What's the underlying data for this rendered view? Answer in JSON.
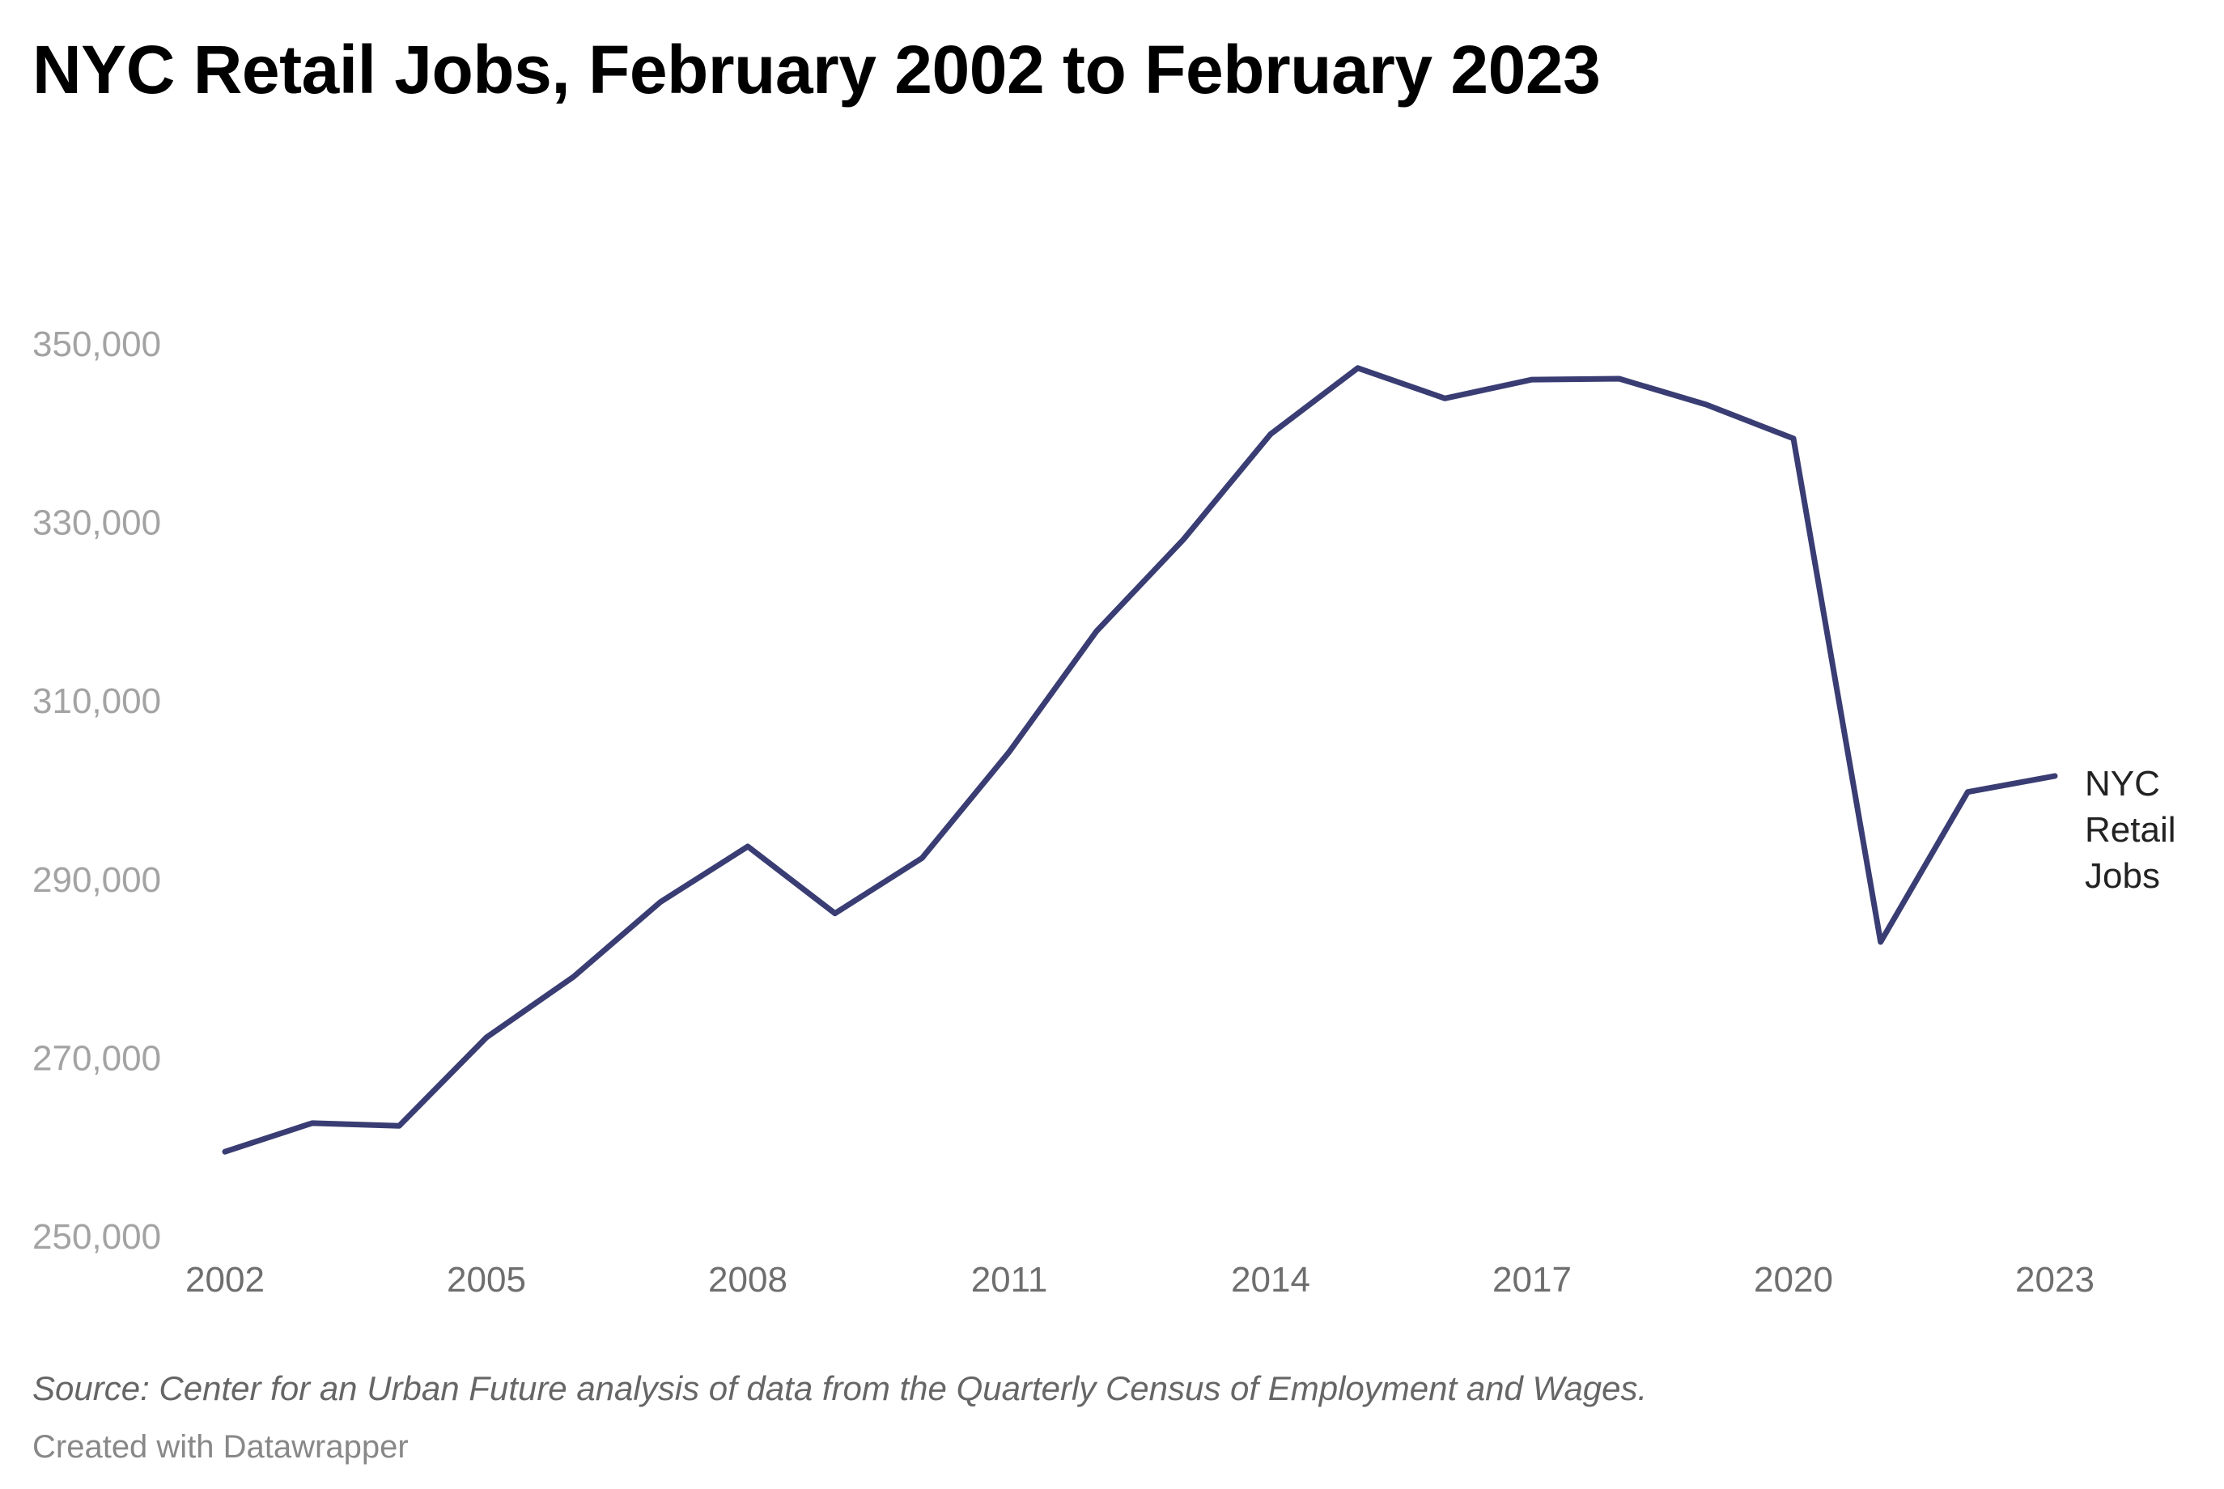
{
  "header": {
    "title": "NYC Retail Jobs, February 2002 to February 2023"
  },
  "footer": {
    "source": "Source: Center for an Urban Future analysis of data from the Quarterly Census of Employment and Wages.",
    "credit": "Created with Datawrapper"
  },
  "colors": {
    "line": "#393d73",
    "y_tick": "#a3a3a3",
    "x_tick": "#6e6e6e",
    "label": "#222222"
  },
  "chart_data": {
    "type": "line",
    "title": "NYC Retail Jobs, February 2002 to February 2023",
    "xlabel": "",
    "ylabel": "",
    "x": [
      2002,
      2003,
      2004,
      2005,
      2006,
      2007,
      2008,
      2009,
      2010,
      2011,
      2012,
      2013,
      2014,
      2015,
      2016,
      2017,
      2018,
      2019,
      2020,
      2021,
      2022,
      2023
    ],
    "series": [
      {
        "name": "NYC Retail Jobs",
        "values": [
          259500,
          262700,
          262400,
          272300,
          279100,
          287500,
          293700,
          286200,
          292400,
          304300,
          317800,
          328100,
          339900,
          347300,
          343900,
          346000,
          346100,
          343200,
          339400,
          283000,
          299800,
          301600
        ]
      }
    ],
    "x_ticks": [
      "2002",
      "2005",
      "2008",
      "2011",
      "2014",
      "2017",
      "2020",
      "2023"
    ],
    "y_ticks": [
      "250,000",
      "270,000",
      "290,000",
      "310,000",
      "330,000",
      "350,000"
    ],
    "ylim": [
      250000,
      350000
    ],
    "xlim": [
      2002,
      2023
    ],
    "grid": false,
    "legend": "direct label at line end (right)"
  }
}
